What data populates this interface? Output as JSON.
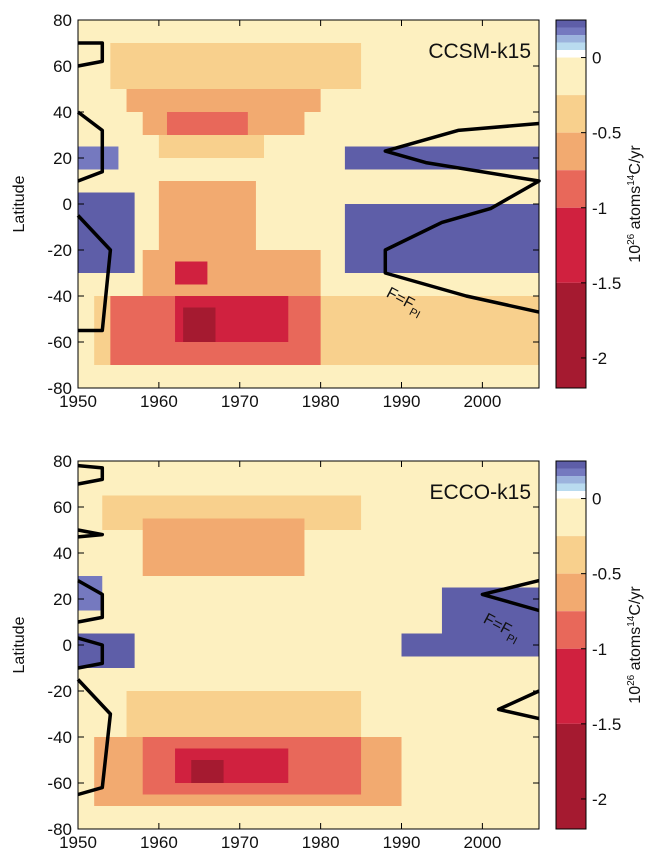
{
  "chart_data": [
    {
      "type": "heatmap",
      "title": "CCSM-k15",
      "ylabel": "Latitude",
      "xlim": [
        1950,
        2007
      ],
      "ylim": [
        -80,
        80
      ],
      "xticks": [
        1950,
        1960,
        1970,
        1980,
        1990,
        2000
      ],
      "yticks": [
        80,
        60,
        40,
        20,
        0,
        -20,
        -40,
        -60,
        -80
      ],
      "colorbar": {
        "label_prefix": "10",
        "label_exp": "26",
        "label_mid": " atoms",
        "label_sup": "14",
        "label_suffix": "C/yr",
        "ticks": [
          0,
          -0.5,
          -1,
          -1.5,
          -2
        ],
        "tick_labels": [
          "0",
          "-0.5",
          "-1",
          "-1.5",
          "-2"
        ]
      },
      "annotation": {
        "prefix": "F=F",
        "sub": "PI",
        "x": 1988,
        "y": -40
      },
      "regions": [
        {
          "lat_range": [
            70,
            80
          ],
          "years": [
            1950,
            2007
          ],
          "value": 0.0
        },
        {
          "lat_range": [
            50,
            70
          ],
          "years": [
            1954,
            1985
          ],
          "value": -0.3
        },
        {
          "lat_range": [
            40,
            50
          ],
          "years": [
            1956,
            1980
          ],
          "value": -0.5
        },
        {
          "lat_range": [
            40,
            50
          ],
          "years": [
            1962,
            1970
          ],
          "value": -0.6
        },
        {
          "lat_range": [
            30,
            40
          ],
          "years": [
            1958,
            1978
          ],
          "value": -0.5
        },
        {
          "lat_range": [
            30,
            40
          ],
          "years": [
            1961,
            1971
          ],
          "value": -0.8
        },
        {
          "lat_range": [
            20,
            30
          ],
          "years": [
            1960,
            1973
          ],
          "value": -0.4
        },
        {
          "lat_range": [
            15,
            25
          ],
          "years": [
            1950,
            1955
          ],
          "value": 0.2
        },
        {
          "lat_range": [
            15,
            25
          ],
          "years": [
            1983,
            2007
          ],
          "value": 0.3
        },
        {
          "lat_range": [
            -30,
            5
          ],
          "years": [
            1950,
            1957
          ],
          "value": 0.5
        },
        {
          "lat_range": [
            -30,
            0
          ],
          "years": [
            1983,
            2007
          ],
          "value": 0.4
        },
        {
          "lat_range": [
            -25,
            -5
          ],
          "years": [
            1996,
            2007
          ],
          "value": 0.7
        },
        {
          "lat_range": [
            -20,
            10
          ],
          "years": [
            1960,
            1972
          ],
          "value": -0.5
        },
        {
          "lat_range": [
            -40,
            -20
          ],
          "years": [
            1958,
            1980
          ],
          "value": -0.6
        },
        {
          "lat_range": [
            -35,
            -25
          ],
          "years": [
            1962,
            1966
          ],
          "value": -1.2
        },
        {
          "lat_range": [
            -70,
            -40
          ],
          "years": [
            1952,
            2007
          ],
          "value": -0.4
        },
        {
          "lat_range": [
            -70,
            -40
          ],
          "years": [
            1954,
            1980
          ],
          "value": -0.8
        },
        {
          "lat_range": [
            -60,
            -40
          ],
          "years": [
            1962,
            1976
          ],
          "value": -1.3
        },
        {
          "lat_range": [
            -60,
            -45
          ],
          "years": [
            1963,
            1967
          ],
          "value": -1.8
        }
      ],
      "contour": [
        [
          [
            1950,
            70
          ],
          [
            1953,
            70
          ],
          [
            1953,
            62
          ],
          [
            1950,
            60
          ]
        ],
        [
          [
            1950,
            40
          ],
          [
            1953,
            32
          ],
          [
            1953,
            14
          ],
          [
            1950,
            10
          ]
        ],
        [
          [
            1950,
            -5
          ],
          [
            1954,
            -20
          ],
          [
            1953,
            -55
          ],
          [
            1950,
            -55
          ]
        ],
        [
          [
            2007,
            35
          ],
          [
            1997,
            32
          ],
          [
            1988,
            23
          ],
          [
            1993,
            18
          ],
          [
            2007,
            10
          ],
          [
            2001,
            -2
          ],
          [
            1995,
            -8
          ],
          [
            1988,
            -20
          ],
          [
            1988,
            -30
          ],
          [
            1998,
            -40
          ],
          [
            2007,
            -47
          ]
        ]
      ]
    },
    {
      "type": "heatmap",
      "title": "ECCO-k15",
      "ylabel": "Latitude",
      "xlim": [
        1950,
        2007
      ],
      "ylim": [
        -80,
        80
      ],
      "xticks": [
        1950,
        1960,
        1970,
        1980,
        1990,
        2000
      ],
      "yticks": [
        80,
        60,
        40,
        20,
        0,
        -20,
        -40,
        -60,
        -80
      ],
      "colorbar": {
        "label_prefix": "10",
        "label_exp": "26",
        "label_mid": " atoms",
        "label_sup": "14",
        "label_suffix": "C/yr",
        "ticks": [
          0,
          -0.5,
          -1,
          -1.5,
          -2
        ],
        "tick_labels": [
          "0",
          "-0.5",
          "-1",
          "-1.5",
          "-2"
        ]
      },
      "annotation": {
        "prefix": "F=F",
        "sub": "PI",
        "x": 2000,
        "y": 10
      },
      "regions": [
        {
          "lat_range": [
            65,
            80
          ],
          "years": [
            1950,
            2007
          ],
          "value": 0.0
        },
        {
          "lat_range": [
            50,
            65
          ],
          "years": [
            1953,
            1985
          ],
          "value": -0.3
        },
        {
          "lat_range": [
            30,
            55
          ],
          "years": [
            1958,
            1978
          ],
          "value": -0.5
        },
        {
          "lat_range": [
            30,
            50
          ],
          "years": [
            1962,
            1968
          ],
          "value": -0.7
        },
        {
          "lat_range": [
            15,
            30
          ],
          "years": [
            1950,
            1953
          ],
          "value": 0.2
        },
        {
          "lat_range": [
            0,
            25
          ],
          "years": [
            1995,
            2007
          ],
          "value": 0.3
        },
        {
          "lat_range": [
            -10,
            5
          ],
          "years": [
            1950,
            1957
          ],
          "value": 0.3
        },
        {
          "lat_range": [
            -5,
            5
          ],
          "years": [
            1990,
            2007
          ],
          "value": 0.3
        },
        {
          "lat_range": [
            -40,
            -20
          ],
          "years": [
            1956,
            1985
          ],
          "value": -0.3
        },
        {
          "lat_range": [
            -70,
            -40
          ],
          "years": [
            1952,
            1990
          ],
          "value": -0.5
        },
        {
          "lat_range": [
            -65,
            -40
          ],
          "years": [
            1958,
            1985
          ],
          "value": -0.8
        },
        {
          "lat_range": [
            -60,
            -45
          ],
          "years": [
            1962,
            1976
          ],
          "value": -1.2
        },
        {
          "lat_range": [
            -60,
            -50
          ],
          "years": [
            1964,
            1968
          ],
          "value": -1.7
        }
      ],
      "contour": [
        [
          [
            1950,
            78
          ],
          [
            1953,
            77
          ],
          [
            1953,
            72
          ],
          [
            1950,
            70
          ]
        ],
        [
          [
            1950,
            50
          ],
          [
            1953,
            48
          ],
          [
            1950,
            47
          ]
        ],
        [
          [
            1950,
            28
          ],
          [
            1953,
            22
          ],
          [
            1953,
            12
          ],
          [
            1950,
            10
          ]
        ],
        [
          [
            1950,
            3
          ],
          [
            1953,
            0
          ],
          [
            1953,
            -8
          ],
          [
            1950,
            -10
          ]
        ],
        [
          [
            1950,
            -15
          ],
          [
            1954,
            -30
          ],
          [
            1953,
            -62
          ],
          [
            1950,
            -65
          ]
        ],
        [
          [
            2007,
            28
          ],
          [
            2000,
            22
          ],
          [
            2007,
            15
          ]
        ],
        [
          [
            2007,
            -20
          ],
          [
            2002,
            -28
          ],
          [
            2007,
            -32
          ]
        ]
      ]
    }
  ],
  "colors": {
    "scale": [
      {
        "max": 0.25,
        "min": 0.2,
        "color": "#5e5ea8"
      },
      {
        "max": 0.2,
        "min": 0.15,
        "color": "#7579bf"
      },
      {
        "max": 0.15,
        "min": 0.1,
        "color": "#9cb3dd"
      },
      {
        "max": 0.1,
        "min": 0.05,
        "color": "#b9dbef"
      },
      {
        "max": 0.05,
        "min": 0.0,
        "color": "#ffffff"
      },
      {
        "max": 0.0,
        "min": -0.25,
        "color": "#fdf0c0"
      },
      {
        "max": -0.25,
        "min": -0.5,
        "color": "#f8d08d"
      },
      {
        "max": -0.5,
        "min": -0.75,
        "color": "#f2aa70"
      },
      {
        "max": -0.75,
        "min": -1.0,
        "color": "#e8685a"
      },
      {
        "max": -1.0,
        "min": -1.5,
        "color": "#d0213f"
      },
      {
        "max": -1.5,
        "min": -2.2,
        "color": "#a51a30"
      }
    ]
  }
}
